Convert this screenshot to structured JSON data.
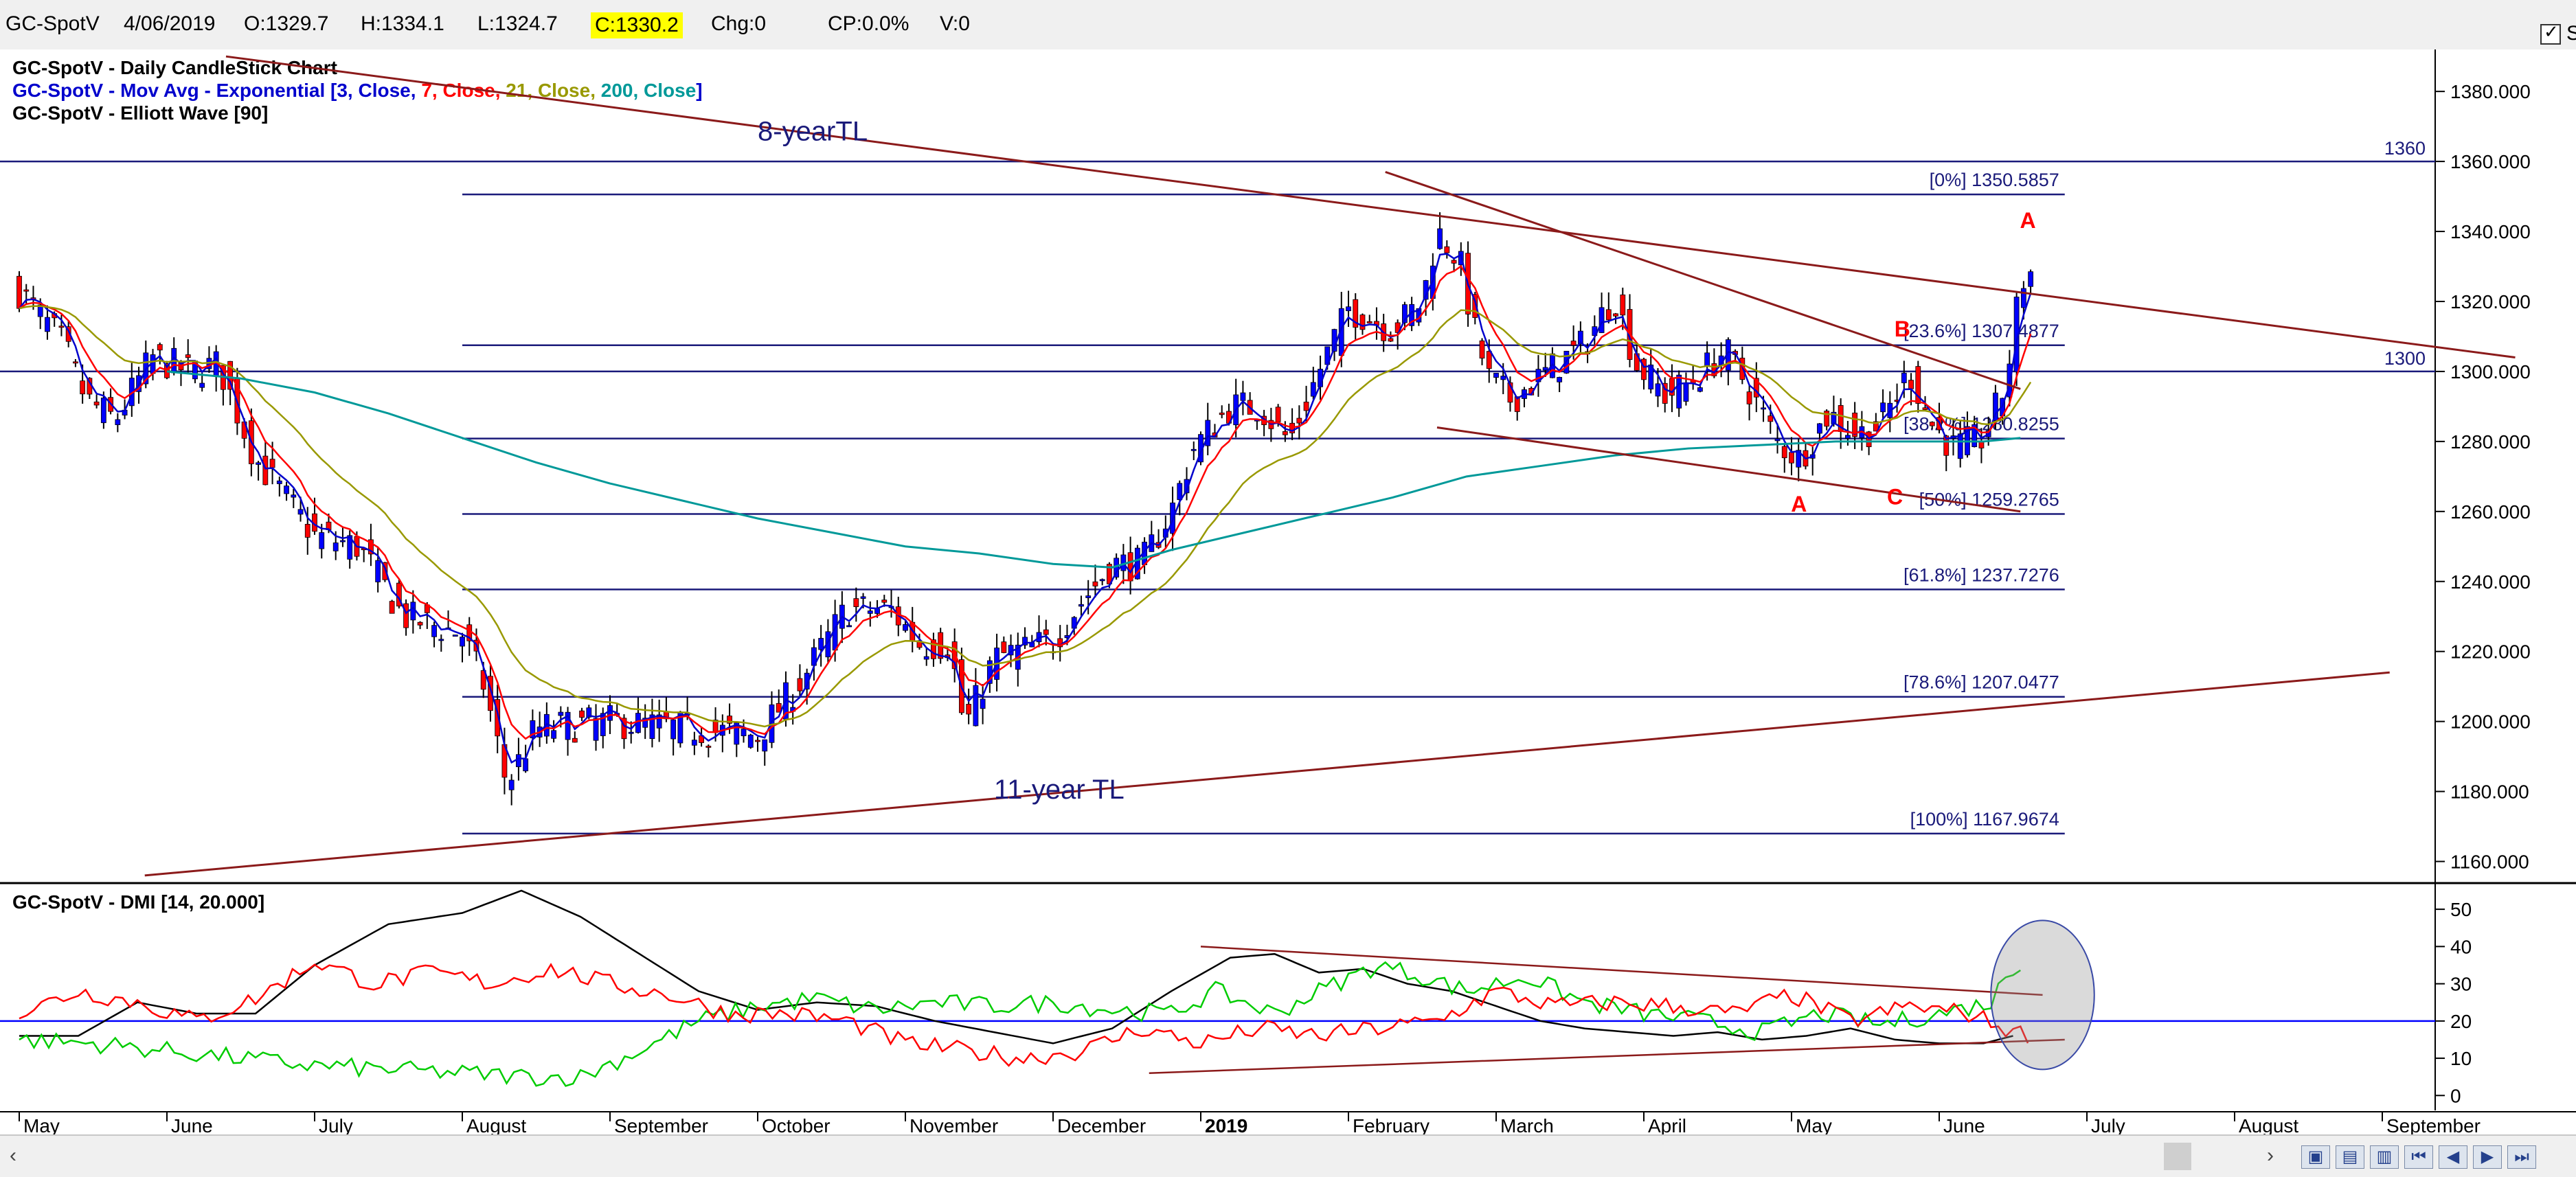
{
  "toolbar": {
    "symbol": "GC-SpotV",
    "date": "4/06/2019",
    "open": "O:1329.7",
    "high": "H:1334.1",
    "low": "L:1324.7",
    "close": "C:1330.2",
    "change": "Chg:0",
    "change_pct": "CP:0.0%",
    "volume": "V:0",
    "show_last_label": "Show Last",
    "show_last_checked": true
  },
  "colors": {
    "up_candle": "#0000ff",
    "down_candle": "#ff0000",
    "ema3": "#0000cc",
    "ema7": "#ff0000",
    "ema21": "#999900",
    "ema200": "#009999",
    "trendline": "#8b1a1a",
    "fib_line": "#1a1a7a",
    "dmi_plus": "#00cc00",
    "dmi_minus": "#ff0000",
    "adx": "#000000",
    "threshold": "#0000ff"
  },
  "chart_data": [
    {
      "type": "candlestick",
      "legend": [
        {
          "text": "GC-SpotV - Daily CandleStick Chart",
          "parts": [
            {
              "t": "GC-SpotV - Daily CandleStick Chart",
              "c": "#000000"
            }
          ]
        },
        {
          "text": "GC-SpotV - Mov Avg - Exponential [3, Close, 7, Close, 21, Close, 200, Close]",
          "parts": [
            {
              "t": "GC-SpotV - Mov Avg - Exponential [3, Close, ",
              "c": "#0000cc"
            },
            {
              "t": "7, Close, ",
              "c": "#ff0000"
            },
            {
              "t": "21, Close, ",
              "c": "#999900"
            },
            {
              "t": "200, Close",
              "c": "#009999"
            },
            {
              "t": "]",
              "c": "#0000cc"
            }
          ]
        },
        {
          "text": "GC-SpotV - Elliott Wave [90]",
          "parts": [
            {
              "t": "GC-SpotV - Elliott Wave [90]",
              "c": "#000000"
            }
          ]
        }
      ],
      "x_labels": [
        "May",
        "June",
        "July",
        "August",
        "September",
        "October",
        "November",
        "December",
        "2019",
        "February",
        "March",
        "April",
        "May",
        "June",
        "July",
        "August",
        "September"
      ],
      "x_label_months": [
        0,
        1,
        2,
        3,
        4,
        5,
        6,
        7,
        8,
        9,
        10,
        11,
        12,
        13,
        14,
        15,
        16
      ],
      "bold_label": "2019",
      "ylim": [
        1155,
        1392
      ],
      "y_ticks": [
        "1160.000",
        "1180.000",
        "1200.000",
        "1220.000",
        "1240.000",
        "1260.000",
        "1280.000",
        "1300.000",
        "1320.000",
        "1340.000",
        "1360.000",
        "1380.000"
      ],
      "y_tick_values": [
        1160,
        1180,
        1200,
        1220,
        1240,
        1260,
        1280,
        1300,
        1320,
        1340,
        1360,
        1380
      ],
      "price_path": [
        [
          0.0,
          1323
        ],
        [
          0.3,
          1308
        ],
        [
          0.45,
          1292
        ],
        [
          0.65,
          1286
        ],
        [
          0.9,
          1304
        ],
        [
          1.15,
          1300
        ],
        [
          1.35,
          1302
        ],
        [
          1.6,
          1275
        ],
        [
          2.0,
          1253
        ],
        [
          2.3,
          1250
        ],
        [
          2.6,
          1230
        ],
        [
          3.0,
          1225
        ],
        [
          3.15,
          1210
        ],
        [
          3.3,
          1182
        ],
        [
          3.5,
          1198
        ],
        [
          4.0,
          1200
        ],
        [
          4.5,
          1198
        ],
        [
          5.0,
          1196
        ],
        [
          5.3,
          1212
        ],
        [
          5.6,
          1232
        ],
        [
          5.9,
          1232
        ],
        [
          6.1,
          1222
        ],
        [
          6.3,
          1222
        ],
        [
          6.4,
          1198
        ],
        [
          6.6,
          1218
        ],
        [
          7.0,
          1223
        ],
        [
          7.15,
          1232
        ],
        [
          7.4,
          1245
        ],
        [
          7.6,
          1245
        ],
        [
          7.8,
          1260
        ],
        [
          7.95,
          1278
        ],
        [
          8.2,
          1290
        ],
        [
          8.4,
          1290
        ],
        [
          8.5,
          1285
        ],
        [
          8.6,
          1280
        ],
        [
          8.8,
          1300
        ],
        [
          9.0,
          1318
        ],
        [
          9.3,
          1312
        ],
        [
          9.5,
          1320
        ],
        [
          9.6,
          1340
        ],
        [
          9.75,
          1332
        ],
        [
          9.85,
          1312
        ],
        [
          9.95,
          1298
        ],
        [
          10.1,
          1292
        ],
        [
          10.35,
          1300
        ],
        [
          10.6,
          1308
        ],
        [
          10.8,
          1322
        ],
        [
          10.95,
          1302
        ],
        [
          11.15,
          1293
        ],
        [
          11.35,
          1298
        ],
        [
          11.55,
          1306
        ],
        [
          11.7,
          1296
        ],
        [
          11.9,
          1280
        ],
        [
          12.05,
          1275
        ],
        [
          12.25,
          1288
        ],
        [
          12.45,
          1282
        ],
        [
          12.6,
          1285
        ],
        [
          12.8,
          1300
        ],
        [
          12.95,
          1285
        ],
        [
          13.1,
          1278
        ],
        [
          13.3,
          1281
        ],
        [
          13.45,
          1296
        ],
        [
          13.55,
          1325
        ],
        [
          13.65,
          1330
        ]
      ],
      "ema200_path": [
        [
          1.0,
          1300
        ],
        [
          1.5,
          1298
        ],
        [
          2.0,
          1294
        ],
        [
          2.5,
          1288
        ],
        [
          3.0,
          1281
        ],
        [
          3.5,
          1274
        ],
        [
          4.0,
          1268
        ],
        [
          4.5,
          1263
        ],
        [
          5.0,
          1258
        ],
        [
          5.5,
          1254
        ],
        [
          6.0,
          1250
        ],
        [
          6.5,
          1248
        ],
        [
          7.0,
          1245
        ],
        [
          7.4,
          1244
        ],
        [
          7.8,
          1249
        ],
        [
          8.3,
          1254
        ],
        [
          8.8,
          1259
        ],
        [
          9.3,
          1264
        ],
        [
          9.8,
          1270
        ],
        [
          10.3,
          1273
        ],
        [
          10.8,
          1276
        ],
        [
          11.3,
          1278
        ],
        [
          11.8,
          1279
        ],
        [
          12.3,
          1280
        ],
        [
          12.8,
          1280
        ],
        [
          13.3,
          1280
        ],
        [
          13.55,
          1281
        ]
      ],
      "fib_levels": [
        {
          "label": "[0%] 1350.5857",
          "value": 1350.5857
        },
        {
          "label": "[23.6%] 1307.4877",
          "value": 1307.4877
        },
        {
          "label": "[38.2%] 1280.8255",
          "value": 1280.8255
        },
        {
          "label": "[50%] 1259.2765",
          "value": 1259.2765
        },
        {
          "label": "[61.8%] 1237.7276",
          "value": 1237.7276
        },
        {
          "label": "[78.6%] 1207.0477",
          "value": 1207.0477
        },
        {
          "label": "[100%] 1167.9674",
          "value": 1167.9674
        }
      ],
      "fib_x_range": [
        3.0,
        13.85
      ],
      "horizontal_levels": [
        {
          "label": "1360",
          "value": 1360
        },
        {
          "label": "1300",
          "value": 1300
        }
      ],
      "trendlines": [
        {
          "label": "8-yearTL",
          "from": [
            1.4,
            1390
          ],
          "to": [
            16.9,
            1304
          ],
          "label_at": [
            5.0,
            1366
          ]
        },
        {
          "label": "11-year TL",
          "from": [
            0.85,
            1156
          ],
          "to": [
            16.05,
            1214
          ],
          "label_at": [
            6.6,
            1178
          ]
        },
        {
          "label": "",
          "from": [
            9.25,
            1357
          ],
          "to": [
            13.55,
            1295
          ]
        },
        {
          "label": "",
          "from": [
            9.6,
            1284
          ],
          "to": [
            13.55,
            1260
          ]
        }
      ],
      "wave_labels": [
        {
          "text": "A",
          "x": 13.6,
          "y": 1341
        },
        {
          "text": "B",
          "x": 12.75,
          "y": 1310
        },
        {
          "text": "A",
          "x": 12.05,
          "y": 1260
        },
        {
          "text": "C",
          "x": 12.7,
          "y": 1262
        }
      ]
    },
    {
      "type": "line",
      "title": "GC-SpotV - DMI [14, 20.000]",
      "ylim": [
        -4,
        55
      ],
      "y_ticks": [
        "0",
        "10",
        "20",
        "30",
        "40",
        "50"
      ],
      "y_tick_values": [
        0,
        10,
        20,
        30,
        40,
        50
      ],
      "threshold": 20,
      "series": [
        {
          "key": "adx",
          "points": [
            [
              0,
              16
            ],
            [
              0.4,
              16
            ],
            [
              0.8,
              25
            ],
            [
              1.2,
              22
            ],
            [
              1.6,
              22
            ],
            [
              2.0,
              35
            ],
            [
              2.5,
              46
            ],
            [
              3.0,
              49
            ],
            [
              3.4,
              55
            ],
            [
              3.8,
              48
            ],
            [
              4.2,
              38
            ],
            [
              4.6,
              28
            ],
            [
              5.0,
              23
            ],
            [
              5.4,
              25
            ],
            [
              5.8,
              24
            ],
            [
              6.2,
              20
            ],
            [
              6.6,
              17
            ],
            [
              7.0,
              14
            ],
            [
              7.4,
              18
            ],
            [
              7.8,
              28
            ],
            [
              8.2,
              37
            ],
            [
              8.5,
              38
            ],
            [
              8.8,
              33
            ],
            [
              9.1,
              34
            ],
            [
              9.4,
              30
            ],
            [
              9.7,
              28
            ],
            [
              10.0,
              24
            ],
            [
              10.3,
              20
            ],
            [
              10.6,
              18
            ],
            [
              10.9,
              17
            ],
            [
              11.2,
              16
            ],
            [
              11.5,
              17
            ],
            [
              11.8,
              15
            ],
            [
              12.1,
              16
            ],
            [
              12.4,
              18
            ],
            [
              12.7,
              15
            ],
            [
              13.0,
              14
            ],
            [
              13.3,
              14
            ],
            [
              13.5,
              16
            ]
          ]
        },
        {
          "key": "plus",
          "points": [
            [
              0,
              15
            ],
            [
              0.5,
              14
            ],
            [
              1.0,
              12
            ],
            [
              1.5,
              10
            ],
            [
              2.0,
              8
            ],
            [
              2.5,
              7
            ],
            [
              3.0,
              6
            ],
            [
              3.5,
              5
            ],
            [
              3.8,
              5
            ],
            [
              4.2,
              12
            ],
            [
              4.6,
              20
            ],
            [
              5.0,
              24
            ],
            [
              5.4,
              26
            ],
            [
              5.8,
              23
            ],
            [
              6.2,
              25
            ],
            [
              6.6,
              24
            ],
            [
              7.0,
              25
            ],
            [
              7.4,
              23
            ],
            [
              7.8,
              22
            ],
            [
              8.1,
              28
            ],
            [
              8.5,
              22
            ],
            [
              8.8,
              28
            ],
            [
              9.2,
              35
            ],
            [
              9.5,
              32
            ],
            [
              9.8,
              28
            ],
            [
              10.2,
              32
            ],
            [
              10.6,
              25
            ],
            [
              11.0,
              22
            ],
            [
              11.4,
              20
            ],
            [
              11.8,
              17
            ],
            [
              12.2,
              22
            ],
            [
              12.6,
              19
            ],
            [
              13.0,
              22
            ],
            [
              13.35,
              25
            ],
            [
              13.45,
              32
            ],
            [
              13.55,
              36
            ]
          ]
        },
        {
          "key": "minus",
          "points": [
            [
              0,
              22
            ],
            [
              0.4,
              28
            ],
            [
              0.8,
              25
            ],
            [
              1.2,
              20
            ],
            [
              1.6,
              26
            ],
            [
              2.0,
              36
            ],
            [
              2.4,
              30
            ],
            [
              2.8,
              33
            ],
            [
              3.2,
              30
            ],
            [
              3.6,
              34
            ],
            [
              4.0,
              30
            ],
            [
              4.4,
              27
            ],
            [
              4.8,
              22
            ],
            [
              5.2,
              22
            ],
            [
              5.6,
              20
            ],
            [
              6.0,
              14
            ],
            [
              6.4,
              12
            ],
            [
              6.8,
              10
            ],
            [
              7.2,
              12
            ],
            [
              7.6,
              18
            ],
            [
              8.0,
              14
            ],
            [
              8.4,
              18
            ],
            [
              8.8,
              16
            ],
            [
              9.2,
              18
            ],
            [
              9.6,
              20
            ],
            [
              10.0,
              28
            ],
            [
              10.4,
              24
            ],
            [
              10.8,
              25
            ],
            [
              11.2,
              24
            ],
            [
              11.6,
              22
            ],
            [
              12.0,
              27
            ],
            [
              12.4,
              20
            ],
            [
              12.8,
              24
            ],
            [
              13.2,
              22
            ],
            [
              13.45,
              18
            ],
            [
              13.6,
              16
            ]
          ]
        }
      ],
      "trendlines": [
        {
          "from": [
            8.0,
            40
          ],
          "to": [
            13.7,
            27
          ]
        },
        {
          "from": [
            7.65,
            6
          ],
          "to": [
            13.85,
            15
          ]
        }
      ],
      "highlight_ellipse": {
        "center": [
          13.7,
          27
        ],
        "radius_months": 0.35,
        "radius_value": 20
      }
    }
  ]
}
